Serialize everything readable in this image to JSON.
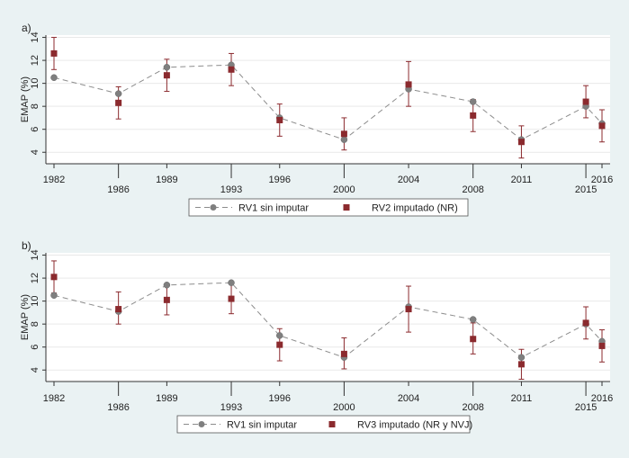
{
  "colors": {
    "background": "#eaf2f3",
    "plot_background": "#ffffff",
    "series_rv1": "#7f7f7f",
    "series_rv1_line": "#8c8c8c",
    "series_rv2": "#8b2a2e",
    "grid": "#e9e9e9"
  },
  "chart_data": [
    {
      "type": "line",
      "panel_label": "a)",
      "ylabel": "EMAP (%)",
      "xlabel": "",
      "ylim": [
        3,
        14.2
      ],
      "yticks": [
        4,
        6,
        8,
        10,
        12,
        14
      ],
      "grid": true,
      "legend_position": "bottom-center",
      "x_ticks": [
        {
          "label": "1982",
          "row": "upper"
        },
        {
          "label": "1986",
          "row": "lower"
        },
        {
          "label": "1989",
          "row": "upper"
        },
        {
          "label": "1993",
          "row": "lower"
        },
        {
          "label": "1996",
          "row": "upper"
        },
        {
          "label": "2000",
          "row": "lower"
        },
        {
          "label": "2004",
          "row": "upper"
        },
        {
          "label": "2008",
          "row": "lower"
        },
        {
          "label": "2011",
          "row": "upper"
        },
        {
          "label": "2015",
          "row": "lower"
        },
        {
          "label": "2016",
          "row": "upper"
        }
      ],
      "x": [
        1982,
        1986,
        1989,
        1993,
        1996,
        2000,
        2004,
        2008,
        2011,
        2015,
        2016
      ],
      "series": [
        {
          "name": "RV1 sin imputar",
          "kind": "dashed-line-circle",
          "values": [
            10.5,
            9.1,
            11.4,
            11.6,
            7.0,
            5.1,
            9.5,
            8.4,
            5.1,
            8.0,
            6.5
          ]
        },
        {
          "name": "RV2 imputado (NR)",
          "kind": "square-errorbar",
          "values": [
            12.6,
            8.3,
            10.7,
            11.2,
            6.8,
            5.6,
            9.9,
            7.2,
            4.9,
            8.4,
            6.3
          ],
          "lower": [
            11.2,
            6.9,
            9.3,
            9.8,
            5.4,
            4.2,
            8.0,
            5.8,
            3.5,
            7.0,
            4.9
          ],
          "upper": [
            14.0,
            9.7,
            12.1,
            12.6,
            8.2,
            7.0,
            11.9,
            8.6,
            6.3,
            9.8,
            7.7
          ]
        }
      ]
    },
    {
      "type": "line",
      "panel_label": "b)",
      "ylabel": "EMAP (%)",
      "xlabel": "",
      "ylim": [
        3,
        14.2
      ],
      "yticks": [
        4,
        6,
        8,
        10,
        12,
        14
      ],
      "grid": true,
      "legend_position": "bottom-center",
      "x_ticks": [
        {
          "label": "1982",
          "row": "upper"
        },
        {
          "label": "1986",
          "row": "lower"
        },
        {
          "label": "1989",
          "row": "upper"
        },
        {
          "label": "1993",
          "row": "lower"
        },
        {
          "label": "1996",
          "row": "upper"
        },
        {
          "label": "2000",
          "row": "lower"
        },
        {
          "label": "2004",
          "row": "upper"
        },
        {
          "label": "2008",
          "row": "lower"
        },
        {
          "label": "2011",
          "row": "upper"
        },
        {
          "label": "2015",
          "row": "lower"
        },
        {
          "label": "2016",
          "row": "upper"
        }
      ],
      "x": [
        1982,
        1986,
        1989,
        1993,
        1996,
        2000,
        2004,
        2008,
        2011,
        2015,
        2016
      ],
      "series": [
        {
          "name": "RV1 sin imputar",
          "kind": "dashed-line-circle",
          "values": [
            10.5,
            9.1,
            11.4,
            11.6,
            7.0,
            5.1,
            9.5,
            8.4,
            5.1,
            8.0,
            6.5
          ]
        },
        {
          "name": "RV3 imputado (NR y NVJ)",
          "kind": "square-errorbar",
          "values": [
            12.1,
            9.3,
            10.1,
            10.2,
            6.2,
            5.4,
            9.3,
            6.7,
            4.5,
            8.1,
            6.1
          ],
          "lower": [
            10.7,
            8.0,
            8.8,
            8.9,
            4.8,
            4.1,
            7.3,
            5.4,
            3.2,
            6.7,
            4.7
          ],
          "upper": [
            13.5,
            10.8,
            11.4,
            11.5,
            7.6,
            6.8,
            11.3,
            8.1,
            5.8,
            9.5,
            7.5
          ]
        }
      ]
    }
  ]
}
